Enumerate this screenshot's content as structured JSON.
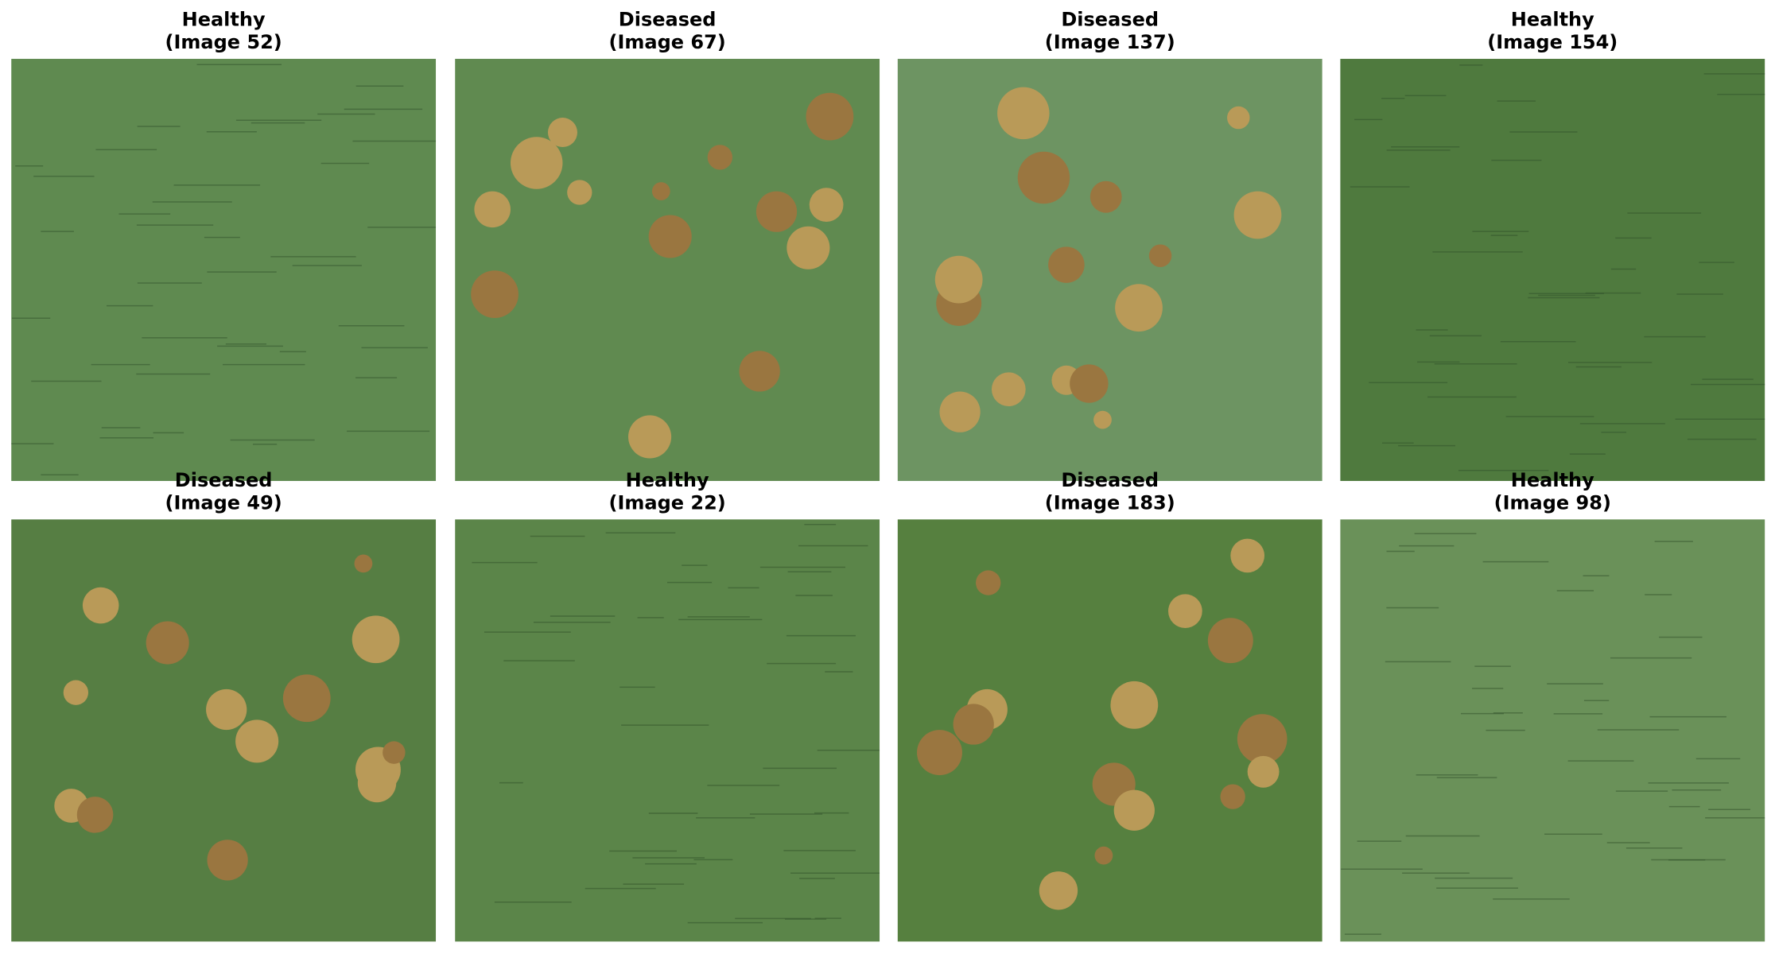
{
  "panels": [
    {
      "label": "Healthy",
      "image": "(Image 52)"
    },
    {
      "label": "Diseased",
      "image": "(Image 67)"
    },
    {
      "label": "Diseased",
      "image": "(Image 137)"
    },
    {
      "label": "Healthy",
      "image": "(Image 154)"
    },
    {
      "label": "Diseased",
      "image": "(Image 49)"
    },
    {
      "label": "Healthy",
      "image": "(Image 22)"
    },
    {
      "label": "Diseased",
      "image": "(Image 183)"
    },
    {
      "label": "Healthy",
      "image": "(Image 98)"
    }
  ]
}
